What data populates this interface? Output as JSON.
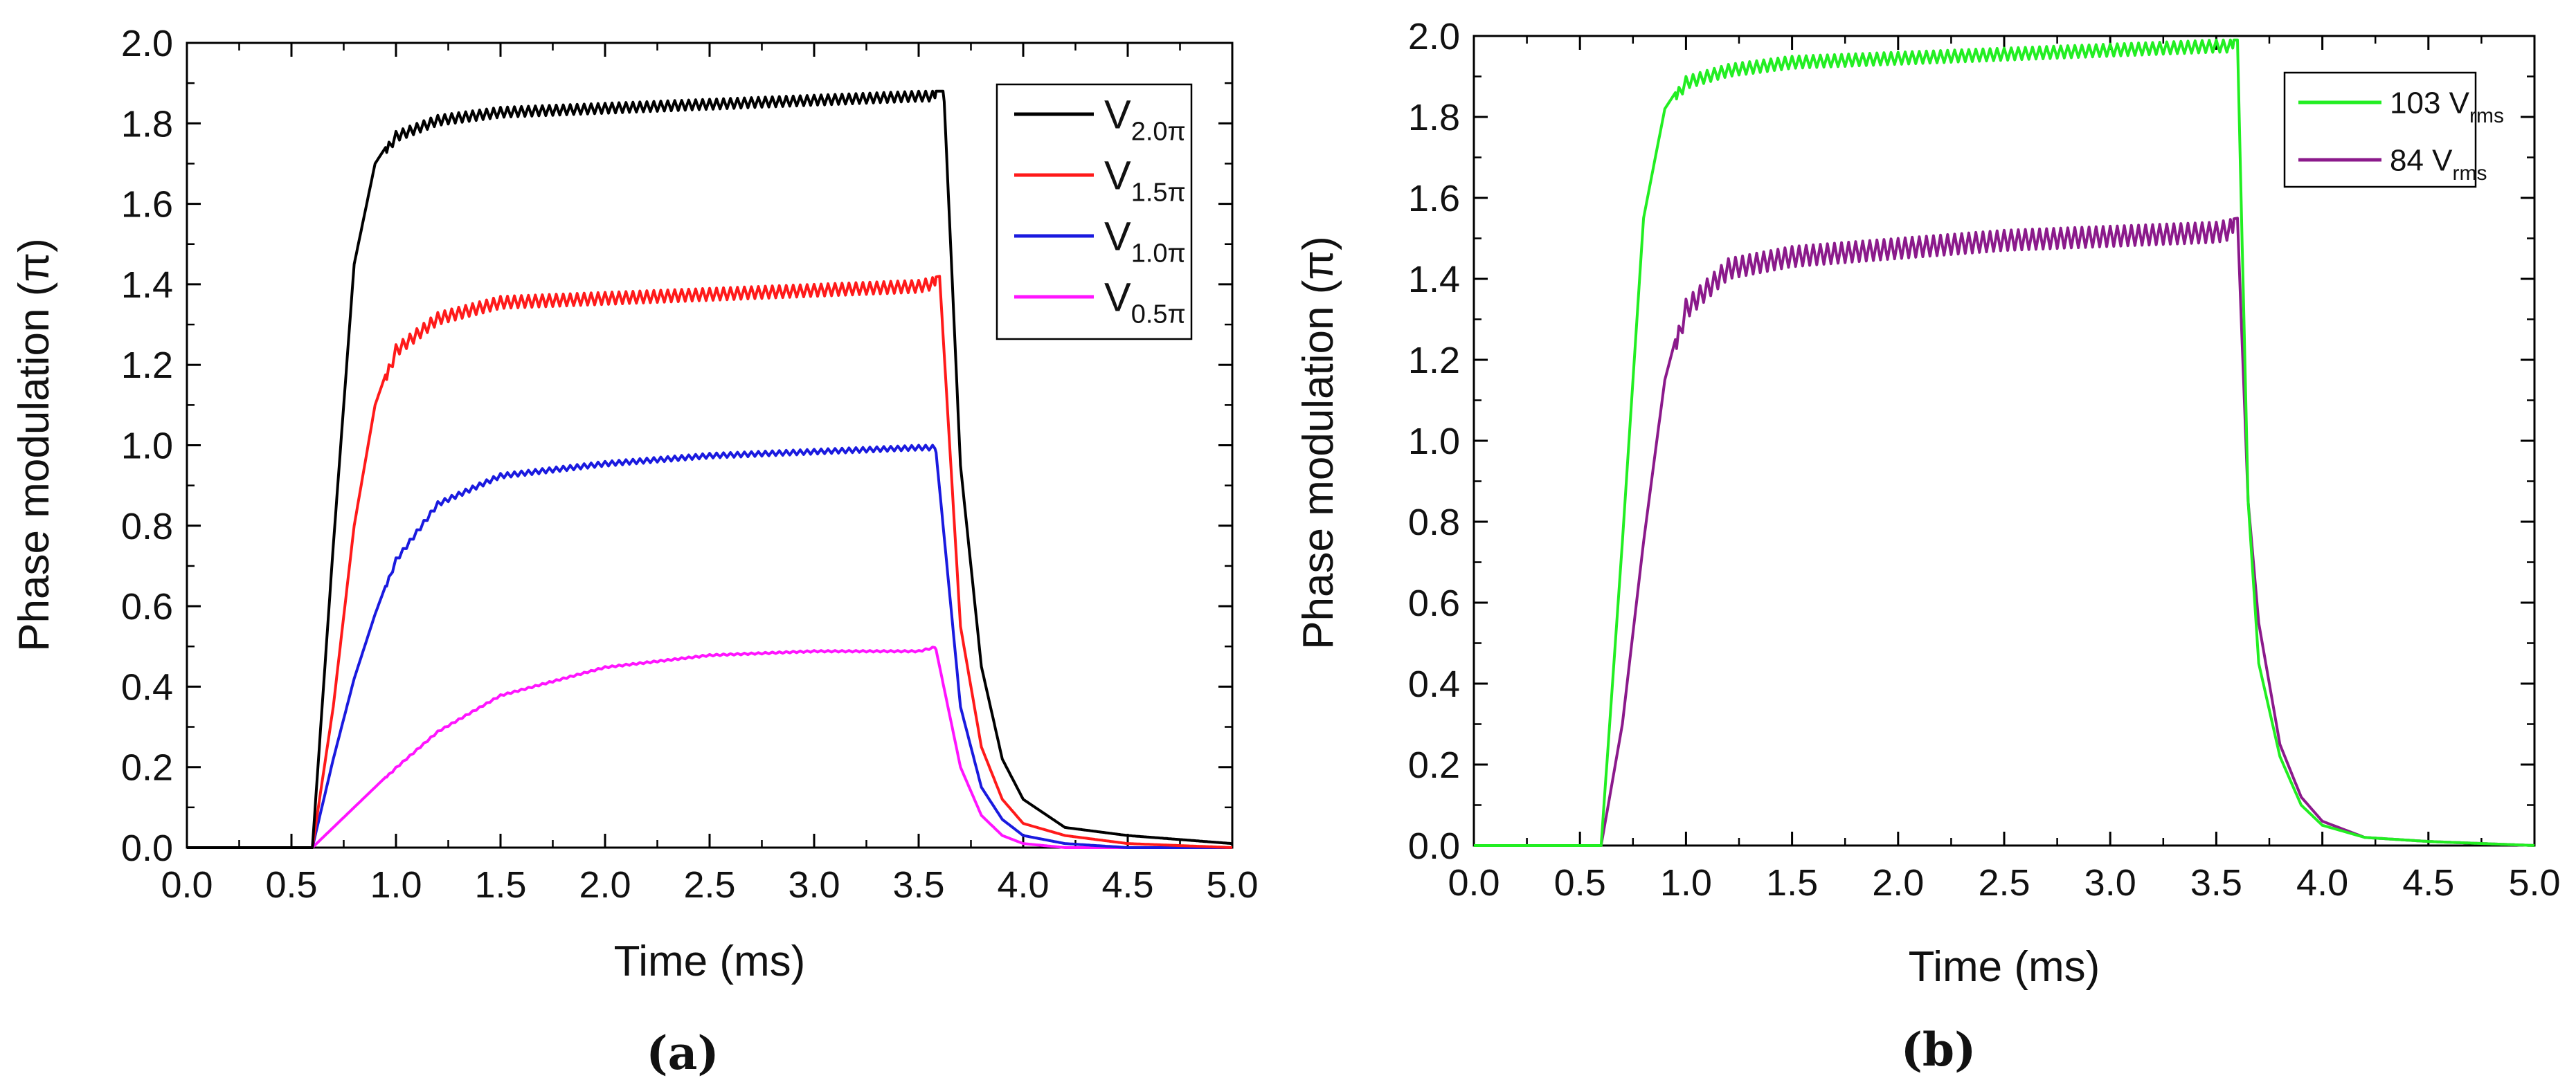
{
  "chart_data": [
    {
      "type": "line",
      "panel_label": "(a)",
      "xlabel": "Time (ms)",
      "ylabel": "Phase modulation (π)",
      "xlim": [
        0,
        5.0
      ],
      "ylim": [
        0,
        2.0
      ],
      "xticks": [
        "0.0",
        "0.5",
        "1.0",
        "1.5",
        "2.0",
        "2.5",
        "3.0",
        "3.5",
        "4.0",
        "4.5",
        "5.0"
      ],
      "yticks": [
        "0.0",
        "0.2",
        "0.4",
        "0.6",
        "0.8",
        "1.0",
        "1.2",
        "1.4",
        "1.6",
        "1.8",
        "2.0"
      ],
      "legend_position": "top-right",
      "series": [
        {
          "name": "V",
          "sub": "2.0π",
          "color": "#000000",
          "plateau": 1.86,
          "rise_tau": 0.13,
          "fall_tau": 0.14,
          "ripple": 0.025,
          "x": [
            0.0,
            0.6,
            0.7,
            0.8,
            0.9,
            1.0,
            1.2,
            1.5,
            2.0,
            2.5,
            3.0,
            3.5,
            3.62,
            3.7,
            3.8,
            3.9,
            4.0,
            4.2,
            4.5,
            5.0
          ],
          "y": [
            0.0,
            0.0,
            0.75,
            1.45,
            1.7,
            1.78,
            1.82,
            1.84,
            1.85,
            1.86,
            1.87,
            1.88,
            1.88,
            0.95,
            0.45,
            0.22,
            0.12,
            0.05,
            0.03,
            0.01
          ]
        },
        {
          "name": "V",
          "sub": "1.5π",
          "color": "#ff1a1a",
          "plateau": 1.4,
          "rise_tau": 0.18,
          "fall_tau": 0.12,
          "ripple": 0.03,
          "x": [
            0.0,
            0.6,
            0.7,
            0.8,
            0.9,
            1.0,
            1.2,
            1.5,
            2.0,
            2.5,
            3.0,
            3.5,
            3.6,
            3.7,
            3.8,
            3.9,
            4.0,
            4.2,
            4.5,
            5.0
          ],
          "y": [
            0.0,
            0.0,
            0.35,
            0.8,
            1.1,
            1.25,
            1.33,
            1.37,
            1.38,
            1.39,
            1.4,
            1.41,
            1.42,
            0.55,
            0.25,
            0.12,
            0.06,
            0.03,
            0.01,
            0.0
          ]
        },
        {
          "name": "V",
          "sub": "1.0π",
          "color": "#1a1adf",
          "plateau": 1.0,
          "rise_tau": 0.28,
          "fall_tau": 0.11,
          "ripple": 0.012,
          "x": [
            0.0,
            0.6,
            0.7,
            0.8,
            0.9,
            1.0,
            1.2,
            1.5,
            2.0,
            2.5,
            3.0,
            3.5,
            3.58,
            3.7,
            3.8,
            3.9,
            4.0,
            4.2,
            4.5,
            5.0
          ],
          "y": [
            0.0,
            0.0,
            0.22,
            0.42,
            0.58,
            0.72,
            0.86,
            0.93,
            0.96,
            0.98,
            0.99,
            1.0,
            1.0,
            0.35,
            0.15,
            0.07,
            0.03,
            0.01,
            0.0,
            0.0
          ]
        },
        {
          "name": "V",
          "sub": "0.5π",
          "color": "#ff14ff",
          "plateau": 0.49,
          "rise_tau": 0.55,
          "fall_tau": 0.1,
          "ripple": 0.004,
          "x": [
            0.0,
            0.6,
            0.8,
            1.0,
            1.2,
            1.5,
            2.0,
            2.5,
            3.0,
            3.5,
            3.58,
            3.7,
            3.8,
            3.9,
            4.0,
            4.2,
            4.5,
            5.0
          ],
          "y": [
            0.0,
            0.0,
            0.1,
            0.2,
            0.29,
            0.38,
            0.45,
            0.48,
            0.49,
            0.49,
            0.5,
            0.2,
            0.08,
            0.03,
            0.01,
            0.0,
            0.0,
            0.0
          ]
        }
      ]
    },
    {
      "type": "line",
      "panel_label": "(b)",
      "xlabel": "Time (ms)",
      "ylabel": "Phase modulation (π)",
      "xlim": [
        0,
        5.0
      ],
      "ylim": [
        0,
        2.0
      ],
      "xticks": [
        "0.0",
        "0.5",
        "1.0",
        "1.5",
        "2.0",
        "2.5",
        "3.0",
        "3.5",
        "4.0",
        "4.5",
        "5.0"
      ],
      "yticks": [
        "0.0",
        "0.2",
        "0.4",
        "0.6",
        "0.8",
        "1.0",
        "1.2",
        "1.4",
        "1.6",
        "1.8",
        "2.0"
      ],
      "legend_position": "top-right",
      "series": [
        {
          "name": "103 V",
          "sub": "rms",
          "color": "#22ee22",
          "plateau": 1.97,
          "ripple": 0.03,
          "x": [
            0.0,
            0.6,
            0.7,
            0.8,
            0.9,
            1.0,
            1.2,
            1.5,
            2.0,
            2.5,
            3.0,
            3.5,
            3.6,
            3.65,
            3.7,
            3.8,
            3.9,
            4.0,
            4.2,
            4.5,
            5.0
          ],
          "y": [
            0.0,
            0.0,
            0.75,
            1.55,
            1.82,
            1.9,
            1.93,
            1.95,
            1.96,
            1.97,
            1.98,
            1.99,
            1.99,
            0.85,
            0.45,
            0.22,
            0.1,
            0.05,
            0.02,
            0.01,
            0.0
          ]
        },
        {
          "name": "84 V",
          "sub": "rms",
          "color": "#8b1a8b",
          "plateau": 1.52,
          "ripple": 0.05,
          "x": [
            0.0,
            0.6,
            0.7,
            0.8,
            0.9,
            1.0,
            1.2,
            1.5,
            2.0,
            2.5,
            3.0,
            3.5,
            3.6,
            3.65,
            3.7,
            3.8,
            3.9,
            4.0,
            4.2,
            4.5,
            5.0
          ],
          "y": [
            0.0,
            0.0,
            0.3,
            0.75,
            1.15,
            1.35,
            1.45,
            1.48,
            1.5,
            1.52,
            1.53,
            1.54,
            1.55,
            0.85,
            0.55,
            0.25,
            0.12,
            0.06,
            0.02,
            0.01,
            0.0
          ]
        }
      ]
    }
  ]
}
